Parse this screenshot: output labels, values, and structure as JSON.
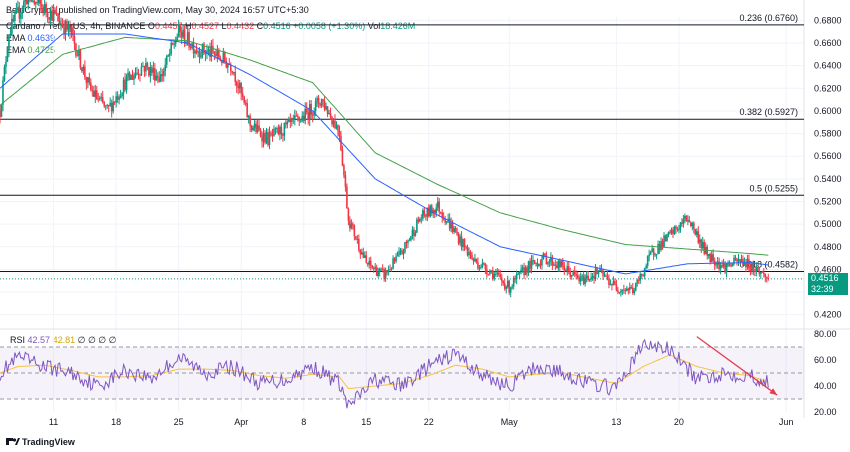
{
  "header": {
    "published_line": "BeInCrypto1 published on TradingView.com, May 30, 2024 16:57 UTC+5:30",
    "symbol": "Cardano / TetherUS, 4h, BINANCE",
    "open_label": "O",
    "open_value": "0.4457",
    "high_label": "H",
    "high_value": "0.4527",
    "low_label": "L",
    "low_value": "0.4432",
    "close_label": "C",
    "close_value": "0.4516",
    "change": "+0.0058 (+1.30%)",
    "volume_label": "Vol",
    "volume_value": "18.426M"
  },
  "indicators": {
    "ema1_label": "EMA",
    "ema1_value": "0.4639",
    "ema2_label": "EMA",
    "ema2_value": "0.4725",
    "rsi_label": "RSI",
    "rsi_value": "42.57",
    "rsi_ma_value": "42.81",
    "rsi_extra": "∅ ∅ ∅ ∅"
  },
  "price_badge": {
    "price": "0.4516",
    "countdown": "32:39"
  },
  "branding": {
    "logo_text": "TradingView"
  },
  "colors": {
    "up": "#089981",
    "down": "#f23645",
    "ema_fast": "#2962ff",
    "ema_slow": "#43a047",
    "rsi_line": "#7e57c2",
    "rsi_ma": "#f5c242",
    "arrow": "#e53950",
    "axis_text": "#131722",
    "grid": "#f0f3fa"
  },
  "chart_data": {
    "type": "candlestick",
    "title": "Cardano / TetherUS, 4h, BINANCE",
    "x_axis": {
      "range": [
        "2024-03-05",
        "2024-06-03"
      ],
      "tick_labels": [
        "11",
        "18",
        "25",
        "Apr",
        "8",
        "15",
        "22",
        "May",
        "13",
        "20",
        "Jun"
      ],
      "tick_dates": [
        "2024-03-11",
        "2024-03-18",
        "2024-03-25",
        "2024-04-01",
        "2024-04-08",
        "2024-04-15",
        "2024-04-22",
        "2024-05-01",
        "2024-05-13",
        "2024-05-20",
        "2024-06-01"
      ]
    },
    "y_axis": {
      "range": [
        0.41,
        0.683
      ],
      "tick_labels": [
        "0.6800",
        "0.6600",
        "0.6400",
        "0.6200",
        "0.6000",
        "0.5800",
        "0.5600",
        "0.5400",
        "0.5200",
        "0.5000",
        "0.4800",
        "0.4600",
        "0.4400",
        "0.4200"
      ],
      "tick_values": [
        0.68,
        0.66,
        0.64,
        0.62,
        0.6,
        0.58,
        0.56,
        0.54,
        0.52,
        0.5,
        0.48,
        0.46,
        0.44,
        0.42
      ]
    },
    "fibonacci_levels": [
      {
        "label": "0.236 (0.6760)",
        "value": 0.676
      },
      {
        "label": "0.382 (0.5927)",
        "value": 0.5927
      },
      {
        "label": "0.5 (0.5255)",
        "value": 0.5255
      },
      {
        "label": "0.618 (0.4582)",
        "value": 0.4582
      }
    ],
    "current_price": 0.4516,
    "price_path": {
      "dates": [
        "2024-03-05",
        "2024-03-06",
        "2024-03-08",
        "2024-03-11",
        "2024-03-13",
        "2024-03-15",
        "2024-03-17",
        "2024-03-19",
        "2024-03-21",
        "2024-03-23",
        "2024-03-25",
        "2024-03-27",
        "2024-03-29",
        "2024-03-31",
        "2024-04-02",
        "2024-04-04",
        "2024-04-06",
        "2024-04-08",
        "2024-04-10",
        "2024-04-12",
        "2024-04-13",
        "2024-04-15",
        "2024-04-17",
        "2024-04-19",
        "2024-04-21",
        "2024-04-23",
        "2024-04-25",
        "2024-04-27",
        "2024-04-29",
        "2024-05-01",
        "2024-05-03",
        "2024-05-05",
        "2024-05-07",
        "2024-05-09",
        "2024-05-11",
        "2024-05-13",
        "2024-05-15",
        "2024-05-17",
        "2024-05-19",
        "2024-05-21",
        "2024-05-23",
        "2024-05-25",
        "2024-05-27",
        "2024-05-29",
        "2024-05-30"
      ],
      "closes": [
        0.6,
        0.67,
        0.7,
        0.685,
        0.668,
        0.62,
        0.6,
        0.625,
        0.64,
        0.63,
        0.67,
        0.655,
        0.65,
        0.64,
        0.588,
        0.575,
        0.585,
        0.595,
        0.61,
        0.582,
        0.505,
        0.465,
        0.455,
        0.475,
        0.505,
        0.516,
        0.492,
        0.468,
        0.458,
        0.444,
        0.462,
        0.47,
        0.462,
        0.45,
        0.458,
        0.444,
        0.442,
        0.475,
        0.49,
        0.506,
        0.475,
        0.462,
        0.468,
        0.458,
        0.4516
      ]
    },
    "series": [
      {
        "name": "EMA (fast)",
        "value": 0.4639,
        "dates": [
          "2024-03-05",
          "2024-03-12",
          "2024-03-19",
          "2024-03-26",
          "2024-04-02",
          "2024-04-09",
          "2024-04-16",
          "2024-04-23",
          "2024-04-30",
          "2024-05-07",
          "2024-05-14",
          "2024-05-21",
          "2024-05-28",
          "2024-05-30"
        ],
        "values": [
          0.62,
          0.668,
          0.668,
          0.66,
          0.632,
          0.6,
          0.54,
          0.508,
          0.48,
          0.468,
          0.456,
          0.465,
          0.466,
          0.4639
        ]
      },
      {
        "name": "EMA (slow)",
        "value": 0.4725,
        "dates": [
          "2024-03-05",
          "2024-03-12",
          "2024-03-19",
          "2024-03-26",
          "2024-04-02",
          "2024-04-09",
          "2024-04-16",
          "2024-04-23",
          "2024-04-30",
          "2024-05-07",
          "2024-05-14",
          "2024-05-21",
          "2024-05-28",
          "2024-05-30"
        ],
        "values": [
          0.605,
          0.65,
          0.665,
          0.662,
          0.645,
          0.625,
          0.563,
          0.535,
          0.51,
          0.495,
          0.482,
          0.478,
          0.474,
          0.4725
        ]
      }
    ],
    "rsi": {
      "value": 42.57,
      "ma_value": 42.81,
      "range": [
        20,
        80
      ],
      "bands": [
        70,
        50,
        30
      ],
      "tick_labels": [
        "80.00",
        "60.00",
        "40.00",
        "20.00"
      ],
      "tick_values": [
        80,
        60,
        40,
        20
      ],
      "dates": [
        "2024-03-05",
        "2024-03-07",
        "2024-03-10",
        "2024-03-13",
        "2024-03-16",
        "2024-03-19",
        "2024-03-22",
        "2024-03-25",
        "2024-03-28",
        "2024-03-31",
        "2024-04-03",
        "2024-04-06",
        "2024-04-09",
        "2024-04-12",
        "2024-04-13",
        "2024-04-16",
        "2024-04-19",
        "2024-04-22",
        "2024-04-25",
        "2024-04-28",
        "2024-05-01",
        "2024-05-04",
        "2024-05-07",
        "2024-05-10",
        "2024-05-13",
        "2024-05-16",
        "2024-05-19",
        "2024-05-22",
        "2024-05-25",
        "2024-05-28",
        "2024-05-30"
      ],
      "values": [
        50,
        62,
        55,
        50,
        40,
        52,
        46,
        62,
        50,
        55,
        42,
        45,
        55,
        42,
        24,
        45,
        40,
        55,
        65,
        48,
        40,
        55,
        50,
        42,
        38,
        72,
        68,
        45,
        50,
        48,
        42.57
      ],
      "ma": [
        50,
        55,
        56,
        52,
        47,
        47,
        48,
        53,
        53,
        52,
        48,
        46,
        49,
        47,
        38,
        40,
        42,
        48,
        56,
        53,
        47,
        49,
        50,
        46,
        42,
        55,
        64,
        55,
        50,
        48,
        42.81
      ],
      "trend_arrow": {
        "from": [
          "2024-05-22",
          78
        ],
        "to": [
          "2024-05-31",
          33
        ]
      }
    }
  }
}
